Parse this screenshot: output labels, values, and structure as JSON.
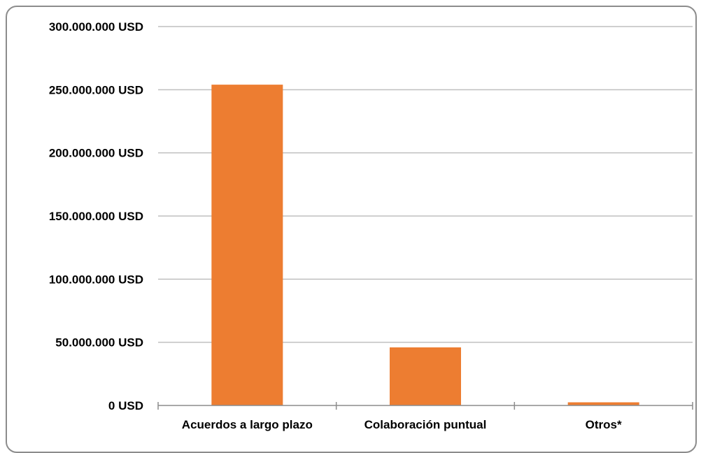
{
  "chart_data": {
    "type": "bar",
    "categories": [
      "Acuerdos a largo plazo",
      "Colaboración puntual",
      "Otros*"
    ],
    "values": [
      254000000,
      46000000,
      2500000
    ],
    "title": "",
    "xlabel": "",
    "ylabel": "",
    "ylim": [
      0,
      300000000
    ],
    "yticks": [
      0,
      50000000,
      100000000,
      150000000,
      200000000,
      250000000,
      300000000
    ],
    "ytick_labels": [
      "0 USD",
      "50.000.000 USD",
      "100.000.000 USD",
      "150.000.000 USD",
      "200.000.000 USD",
      "250.000.000 USD",
      "300.000.000 USD"
    ],
    "grid": true,
    "legend": "none",
    "colors": {
      "bar": "#ED7D31",
      "grid": "#BFBFBF",
      "axis": "#8C8C8C",
      "frame": "#8C8C8C"
    }
  }
}
